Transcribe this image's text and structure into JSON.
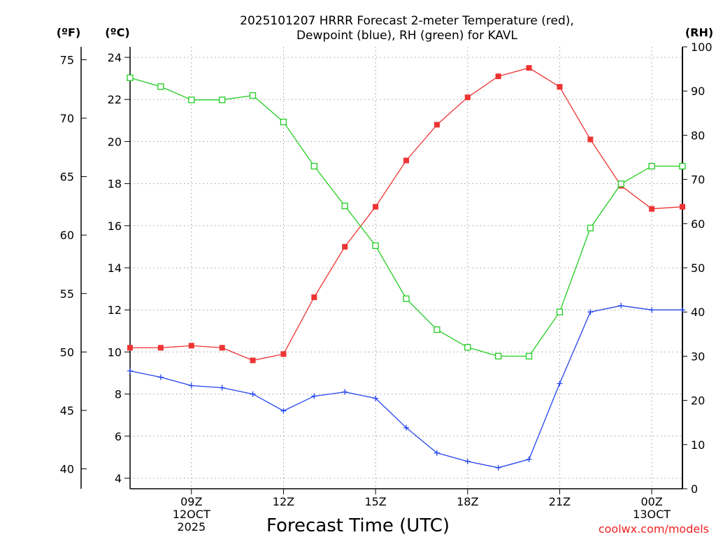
{
  "title_line1": "2025101207 HRRR Forecast 2-meter Temperature (red),",
  "title_line2": "Dewpoint (blue), RH (green) for KAVL",
  "unit_left_f": "(ºF)",
  "unit_left_c": "(ºC)",
  "unit_right": "(RH)",
  "credit": "coolwx.com/models",
  "colors": {
    "temperature": "#ee3333",
    "dewpoint": "#2244ee",
    "rh": "#22cc22"
  },
  "chart_data": {
    "type": "line",
    "title": "2025101207 HRRR Forecast 2-meter Temperature (red), Dewpoint (blue), RH (green) for KAVL",
    "xlabel": "Forecast Time (UTC)",
    "x_hours": [
      7,
      8,
      9,
      10,
      11,
      12,
      13,
      14,
      15,
      16,
      17,
      18,
      19,
      20,
      21,
      22,
      23,
      24,
      25
    ],
    "x_range": [
      7,
      25
    ],
    "x_ticks": [
      {
        "hour": 9,
        "lines": [
          "09Z",
          "12OCT",
          "2025"
        ]
      },
      {
        "hour": 12,
        "lines": [
          "12Z"
        ]
      },
      {
        "hour": 15,
        "lines": [
          "15Z"
        ]
      },
      {
        "hour": 18,
        "lines": [
          "18Z"
        ]
      },
      {
        "hour": 21,
        "lines": [
          "21Z"
        ]
      },
      {
        "hour": 24,
        "lines": [
          "00Z",
          "13OCT"
        ]
      }
    ],
    "y_celsius": {
      "label": "(ºC)",
      "range": [
        3.5,
        24.5
      ],
      "ticks": [
        4,
        6,
        8,
        10,
        12,
        14,
        16,
        18,
        20,
        22,
        24
      ]
    },
    "y_fahrenheit": {
      "label": "(ºF)",
      "ticks": [
        40,
        45,
        50,
        55,
        60,
        65,
        70,
        75
      ]
    },
    "y_rh": {
      "label": "(RH)",
      "range": [
        0,
        100
      ],
      "ticks": [
        0,
        10,
        20,
        30,
        40,
        50,
        60,
        70,
        80,
        90,
        100
      ]
    },
    "series": [
      {
        "name": "Temperature",
        "axis": "celsius",
        "color": "#ee3333",
        "marker": "filled-square",
        "values": [
          10.2,
          10.2,
          10.3,
          10.2,
          9.6,
          9.9,
          12.6,
          15.0,
          16.9,
          19.1,
          20.8,
          22.1,
          23.1,
          23.5,
          22.6,
          20.1,
          17.9,
          16.8,
          16.9
        ]
      },
      {
        "name": "Dewpoint",
        "axis": "celsius",
        "color": "#2244ee",
        "marker": "plus",
        "values": [
          9.1,
          8.8,
          8.4,
          8.3,
          8.0,
          7.2,
          7.9,
          8.1,
          7.8,
          6.4,
          5.2,
          4.8,
          4.5,
          4.9,
          8.5,
          11.9,
          12.2,
          12.0,
          12.0
        ]
      },
      {
        "name": "RH",
        "axis": "rh",
        "color": "#22cc22",
        "marker": "open-square",
        "values": [
          93,
          91,
          88,
          88,
          89,
          83,
          73,
          64,
          55,
          43,
          36,
          32,
          30,
          30,
          40,
          59,
          69,
          73,
          73
        ]
      }
    ]
  }
}
